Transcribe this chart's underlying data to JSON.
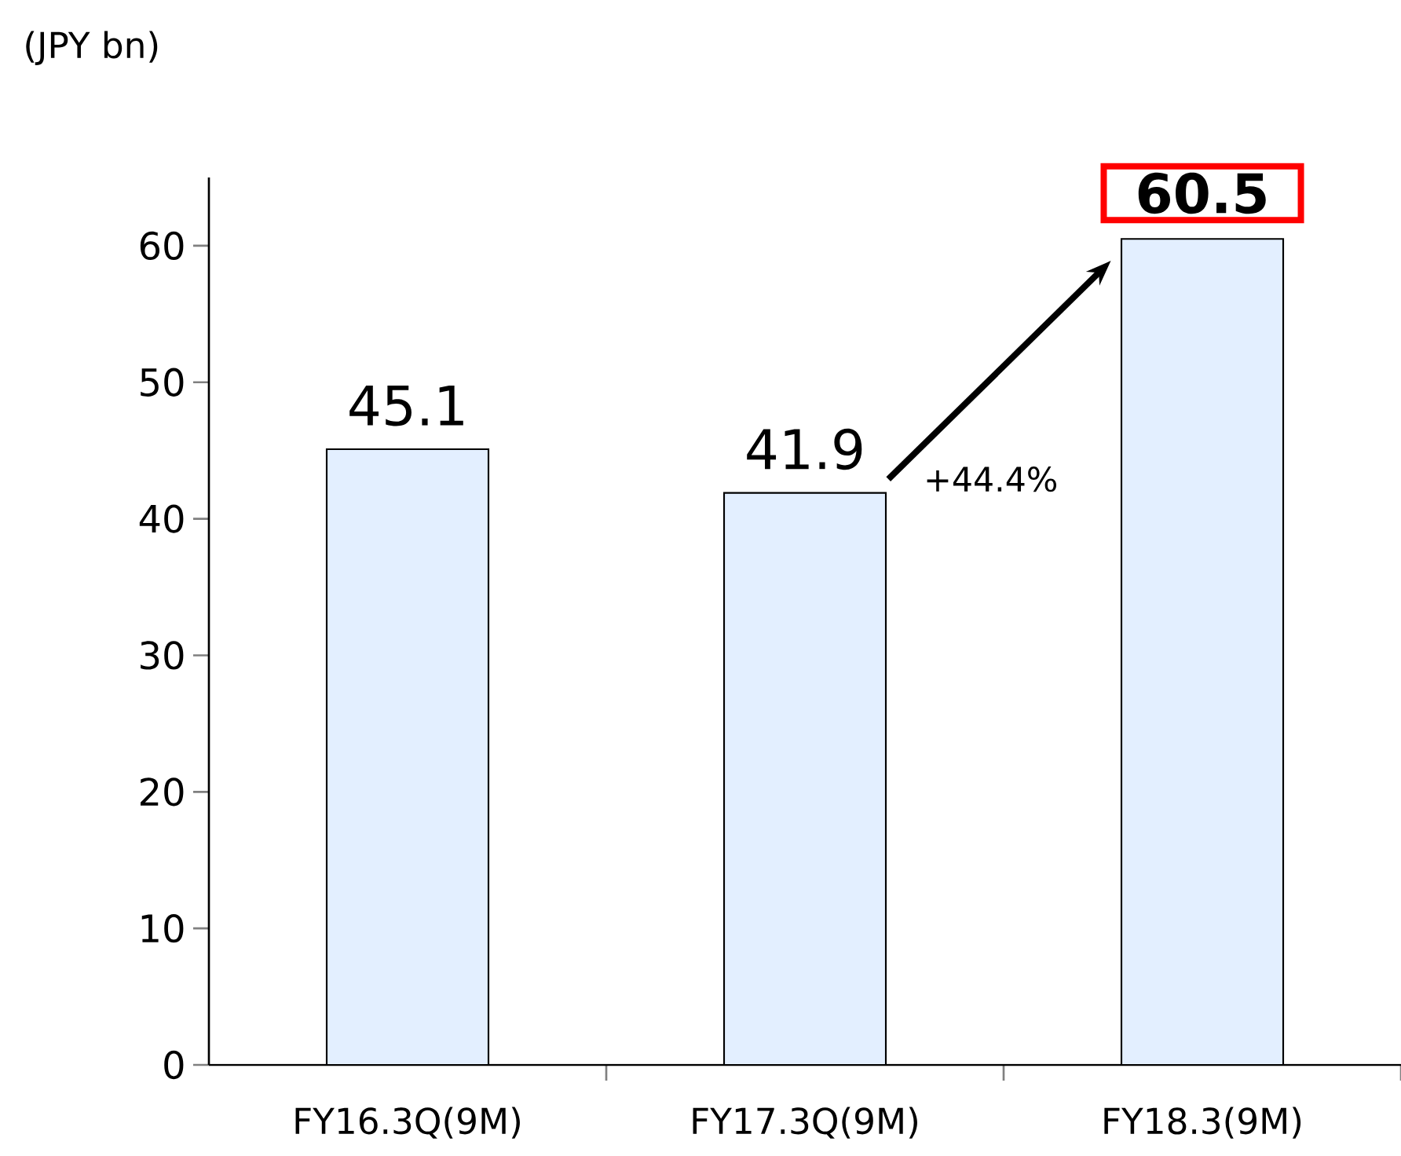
{
  "chart_data": {
    "type": "bar",
    "categories": [
      "FY16.3Q(9M)",
      "FY17.3Q(9M)",
      "FY18.3(9M)"
    ],
    "values": [
      45.1,
      41.9,
      60.5
    ],
    "color": "#e3efff",
    "value_labels": [
      "45.1",
      "41.9",
      "**60.5**"
    ],
    "ylim": [
      0,
      65
    ],
    "yticks": [
      0,
      10,
      20,
      30,
      40,
      50,
      60
    ],
    "annotations": [
      "(JPY bn)",
      "+44.4%"
    ],
    "grid": false
  }
}
